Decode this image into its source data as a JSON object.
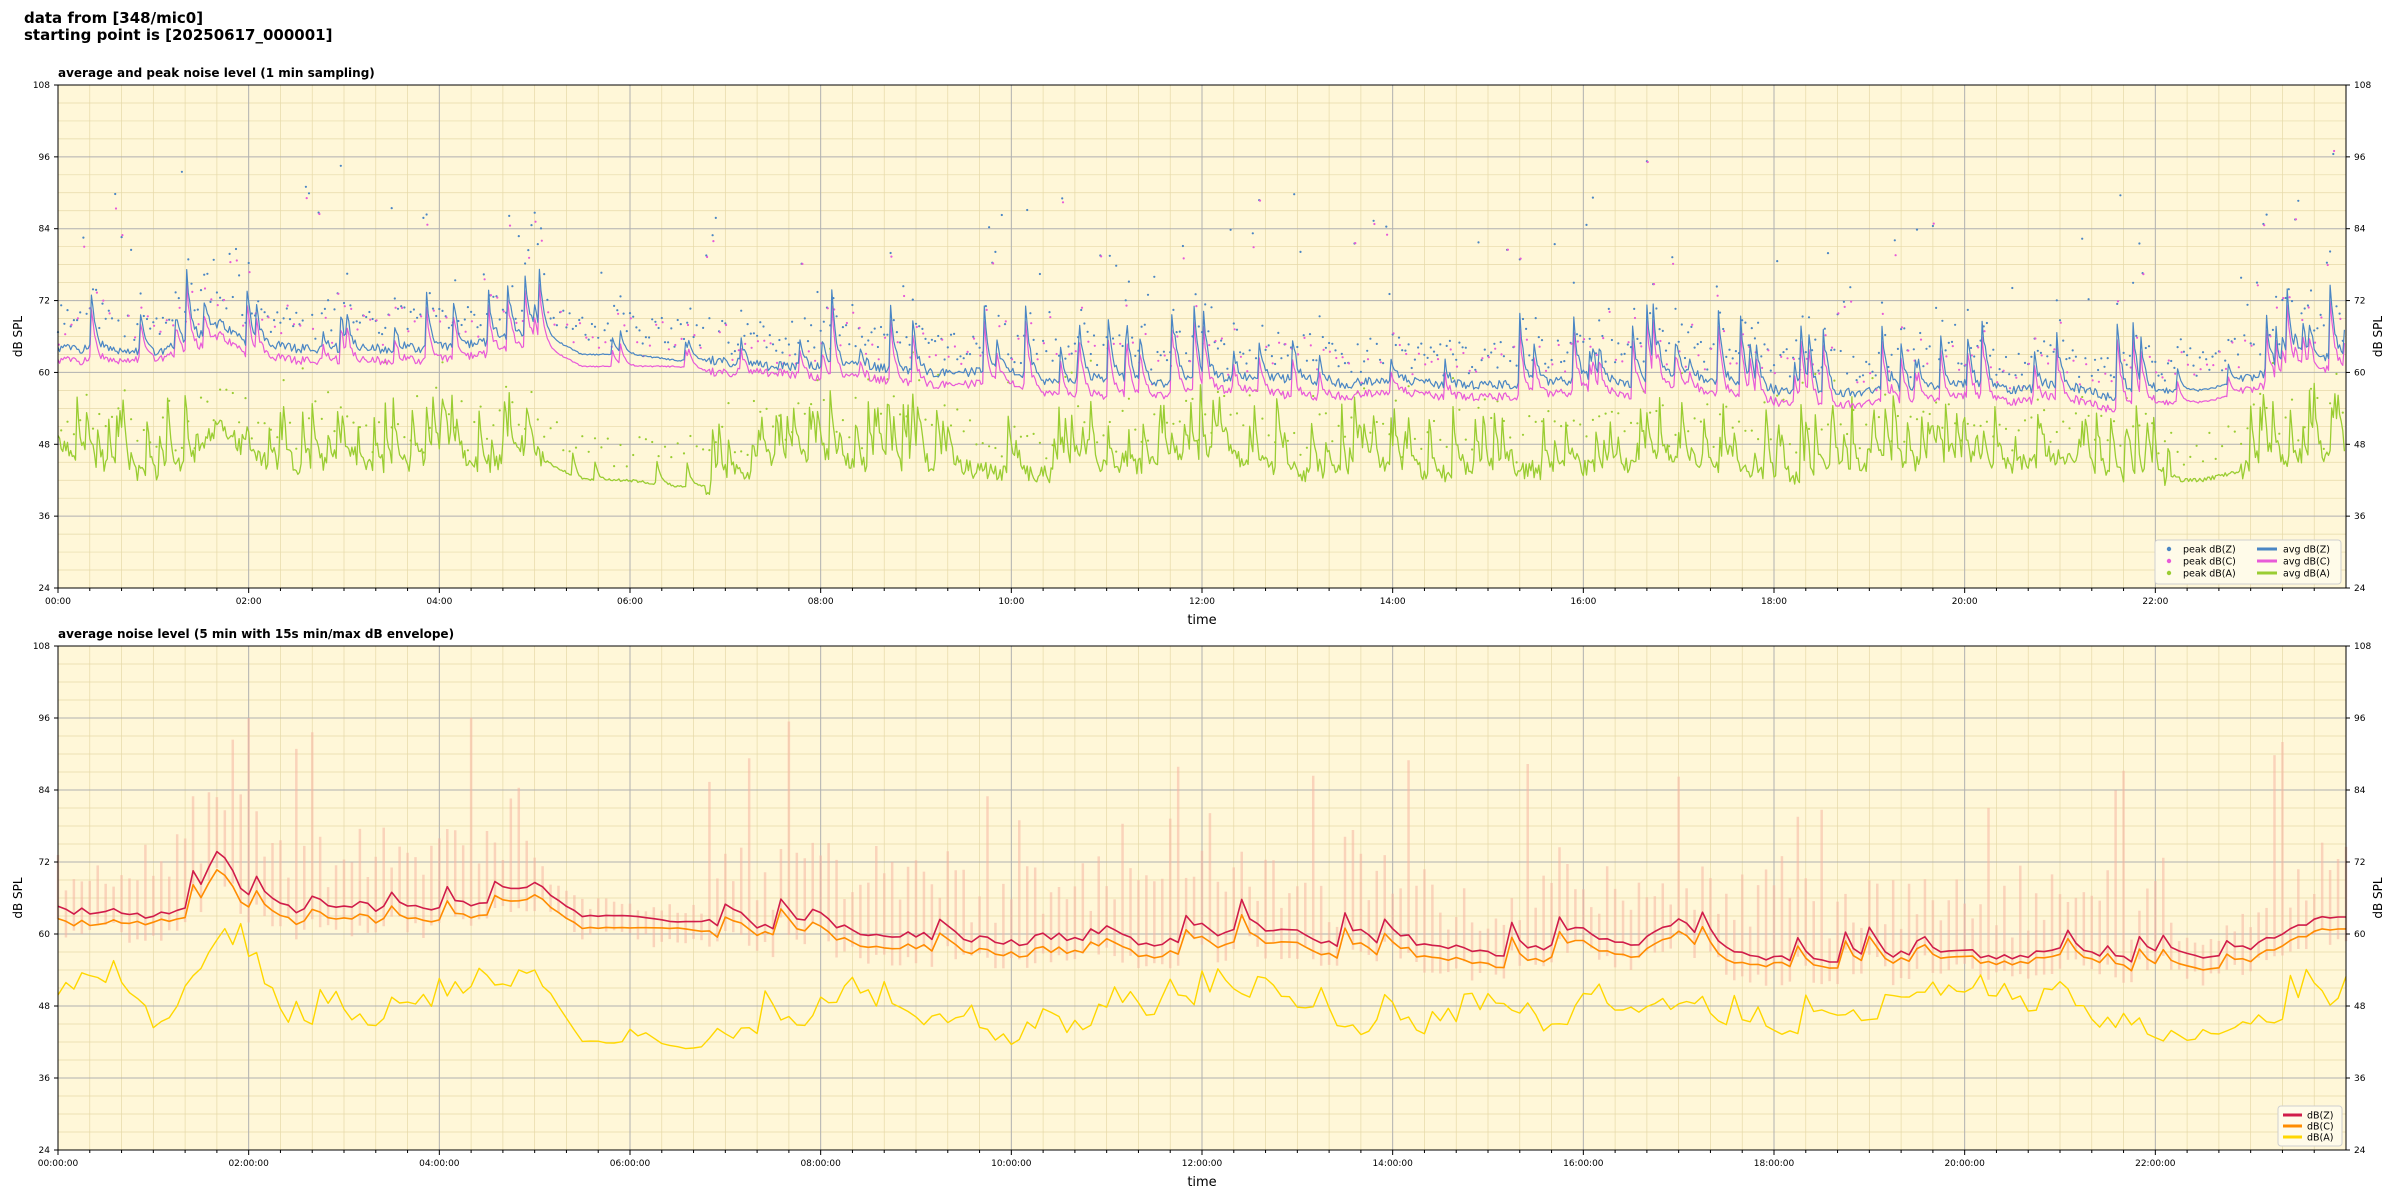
{
  "header": {
    "line1": "data from [348/mic0]",
    "line2": "starting point is [20250617_000001]"
  },
  "colors": {
    "panel_bg": "#fff7d8",
    "z_1min": "#4a86c4",
    "c_1min": "#e85ad8",
    "a_1min": "#9acd32",
    "z_5min": "#d01c4a",
    "c_5min": "#ff8c00",
    "a_5min": "#ffd700",
    "envelope": "#f7b7a3"
  },
  "chart_data": [
    {
      "type": "line",
      "title": "average and peak noise level (1 min sampling)",
      "xlabel": "time",
      "ylabel": "dB SPL",
      "x_range_hours": [
        0,
        24
      ],
      "ylim": [
        24,
        108
      ],
      "yticks": [
        24,
        36,
        48,
        60,
        72,
        84,
        96,
        108
      ],
      "xtick_labels": [
        "00:00",
        "02:00",
        "04:00",
        "06:00",
        "08:00",
        "10:00",
        "12:00",
        "14:00",
        "16:00",
        "18:00",
        "20:00",
        "22:00"
      ],
      "grid": true,
      "legend_position": "lower-right",
      "series": [
        {
          "name": "peak dB(Z)",
          "kind": "scatter"
        },
        {
          "name": "peak dB(C)",
          "kind": "scatter"
        },
        {
          "name": "peak dB(A)",
          "kind": "scatter"
        },
        {
          "name": "avg dB(Z)",
          "kind": "line"
        },
        {
          "name": "avg dB(C)",
          "kind": "line"
        },
        {
          "name": "avg dB(A)",
          "kind": "line"
        }
      ],
      "keypoints_hours": [
        0,
        0.5,
        1,
        1.5,
        1.7,
        2,
        2.5,
        3,
        3.5,
        4,
        4.5,
        5,
        5.5,
        6,
        6.5,
        6.9,
        7.5,
        8,
        8.5,
        9,
        9.5,
        10,
        10.5,
        11,
        11.5,
        12,
        12.5,
        13,
        13.5,
        14,
        14.5,
        15,
        15.5,
        16,
        16.5,
        17,
        17.5,
        18,
        18.5,
        19,
        19.5,
        20,
        20.5,
        21,
        21.5,
        22,
        22.5,
        23,
        23.5,
        24
      ],
      "avg_z_keypoints": [
        64,
        64,
        63,
        66,
        68,
        65,
        64,
        64,
        64,
        64,
        65,
        67,
        63,
        63,
        62,
        62,
        61,
        61,
        61,
        60,
        60,
        60,
        58,
        59,
        58,
        59,
        59,
        59,
        58,
        59,
        58,
        58,
        58,
        59,
        58,
        60,
        58,
        57,
        56,
        57,
        57,
        58,
        57,
        58,
        56,
        57,
        57,
        59,
        62,
        63
      ],
      "avg_c_keypoints": [
        62,
        62,
        62,
        64,
        66,
        63,
        62,
        62,
        62,
        62,
        63,
        65,
        61,
        61,
        61,
        60,
        60,
        59,
        59,
        58,
        58,
        58,
        56,
        56,
        56,
        57,
        57,
        56,
        56,
        57,
        56,
        56,
        56,
        57,
        56,
        58,
        56,
        55,
        54,
        55,
        55,
        56,
        55,
        56,
        54,
        55,
        55,
        57,
        60,
        61
      ],
      "avg_a_keypoints": [
        48,
        44,
        42,
        46,
        52,
        46,
        44,
        45,
        44,
        46,
        44,
        46,
        42,
        42,
        41,
        41,
        45,
        46,
        44,
        44,
        44,
        43,
        43,
        44,
        44,
        46,
        45,
        43,
        43,
        44,
        43,
        44,
        43,
        44,
        44,
        46,
        44,
        42,
        43,
        44,
        44,
        45,
        44,
        46,
        43,
        42,
        42,
        44,
        45,
        46
      ]
    },
    {
      "type": "line",
      "title": "average noise level (5 min with 15s min/max dB envelope)",
      "xlabel": "time",
      "ylabel": "dB SPL",
      "x_range_hours": [
        0,
        24
      ],
      "ylim": [
        24,
        108
      ],
      "yticks": [
        24,
        36,
        48,
        60,
        72,
        84,
        96,
        108
      ],
      "xtick_labels": [
        "00:00:00",
        "02:00:00",
        "04:00:00",
        "06:00:00",
        "08:00:00",
        "10:00:00",
        "12:00:00",
        "14:00:00",
        "16:00:00",
        "18:00:00",
        "20:00:00",
        "22:00:00"
      ],
      "grid": true,
      "legend_position": "lower-right",
      "series": [
        {
          "name": "dB(Z)",
          "kind": "line"
        },
        {
          "name": "dB(C)",
          "kind": "line"
        },
        {
          "name": "dB(A)",
          "kind": "line"
        }
      ],
      "keypoints_hours": [
        0,
        0.5,
        1,
        1.5,
        1.7,
        2,
        2.5,
        3,
        3.5,
        4,
        4.5,
        5,
        5.5,
        6,
        6.5,
        6.9,
        7.5,
        8,
        8.5,
        9,
        9.5,
        10,
        10.5,
        11,
        11.5,
        12,
        12.5,
        13,
        13.5,
        14,
        14.5,
        15,
        15.5,
        16,
        16.5,
        17,
        17.5,
        18,
        18.5,
        19,
        19.5,
        20,
        20.5,
        21,
        21.5,
        22,
        22.5,
        23,
        23.5,
        24
      ],
      "z_keypoints": [
        64,
        64,
        63,
        66,
        73,
        66,
        64,
        65,
        64,
        64,
        65,
        68,
        63,
        63,
        62,
        62,
        61,
        61,
        60,
        60,
        59,
        59,
        57,
        60,
        58,
        60,
        60,
        60,
        58,
        59,
        58,
        57,
        57,
        60,
        58,
        62,
        57,
        56,
        55,
        56,
        56,
        57,
        56,
        57,
        55,
        56,
        56,
        57,
        62,
        63
      ],
      "c_keypoints": [
        62,
        62,
        62,
        64,
        70,
        64,
        62,
        63,
        62,
        62,
        63,
        66,
        61,
        61,
        61,
        60,
        60,
        59,
        58,
        58,
        57,
        57,
        55,
        58,
        56,
        58,
        58,
        58,
        56,
        57,
        56,
        55,
        55,
        58,
        56,
        60,
        55,
        55,
        54,
        55,
        55,
        56,
        55,
        56,
        54,
        54,
        54,
        55,
        60,
        61
      ],
      "a_keypoints": [
        49,
        52,
        44,
        50,
        60,
        55,
        44,
        46,
        45,
        48,
        50,
        54,
        42,
        42,
        41,
        41,
        45,
        46,
        49,
        46,
        46,
        42,
        43,
        46,
        45,
        49,
        50,
        47,
        44,
        45,
        44,
        46,
        43,
        45,
        46,
        49,
        44,
        42,
        46,
        46,
        47,
        48,
        47,
        49,
        44,
        42,
        42,
        45,
        47,
        49
      ]
    }
  ]
}
